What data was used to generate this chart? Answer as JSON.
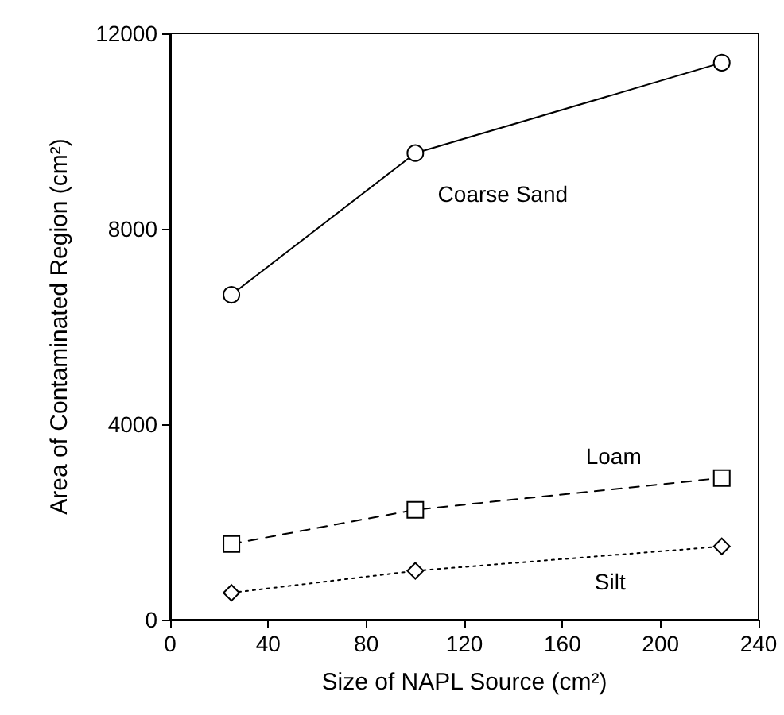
{
  "chart_data": {
    "type": "line",
    "xlabel": "Size of NAPL Source (cm²)",
    "ylabel": "Area of Contaminated Region (cm²)",
    "x": [
      25,
      100,
      225
    ],
    "series": [
      {
        "name": "Coarse Sand",
        "color": "#000000",
        "values": [
          6650,
          9550,
          11400
        ],
        "marker": "circle",
        "line_style": "solid"
      },
      {
        "name": "Loam",
        "color": "#000000",
        "values": [
          1550,
          2250,
          2900
        ],
        "marker": "square",
        "line_style": "dashed"
      },
      {
        "name": "Silt",
        "color": "#000000",
        "values": [
          550,
          1000,
          1500
        ],
        "marker": "diamond",
        "line_style": "dotted"
      }
    ],
    "xlim": [
      0,
      240
    ],
    "xticks": [
      0,
      40,
      80,
      120,
      160,
      200,
      240
    ],
    "ylim": [
      0,
      12000
    ],
    "yticks": [
      0,
      4000,
      8000,
      12000
    ],
    "grid": false,
    "legend": false
  }
}
